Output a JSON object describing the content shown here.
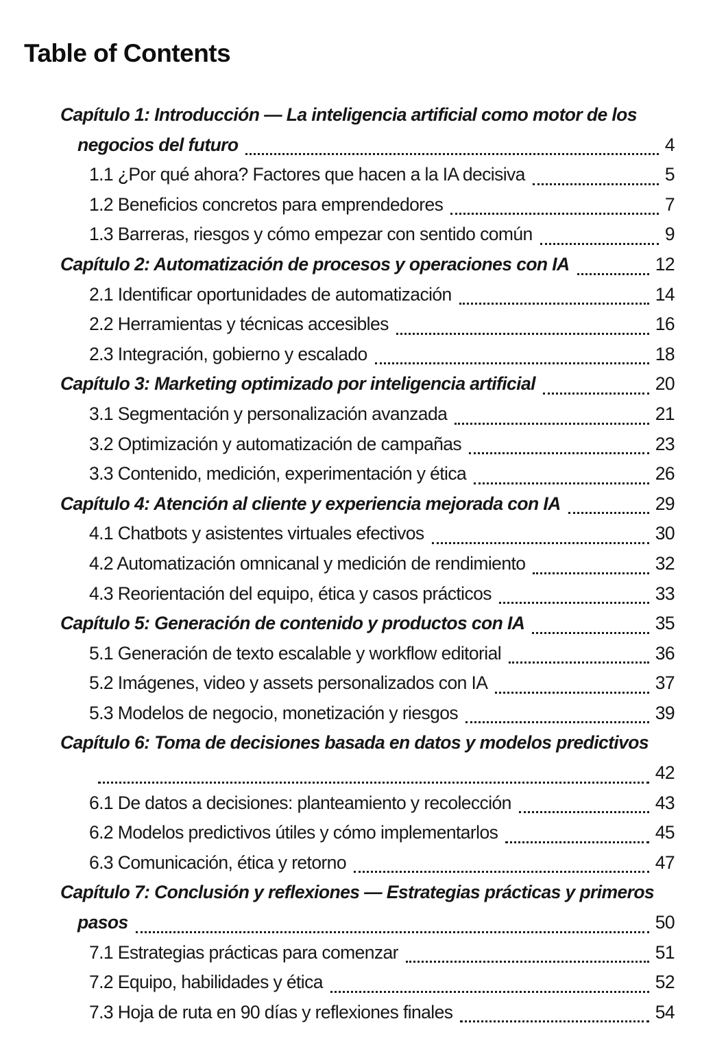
{
  "colors": {
    "background": "#ffffff",
    "text": "#161616"
  },
  "toc": {
    "title": "Table of Contents",
    "entries": [
      {
        "type": "chapter",
        "pre_lines": [
          "Capítulo 1: Introducción — La inteligencia artificial como motor de los"
        ],
        "text": "negocios del futuro",
        "page": "4"
      },
      {
        "type": "sub",
        "text": "1.1 ¿Por qué ahora? Factores que hacen a la IA decisiva",
        "page": "5"
      },
      {
        "type": "sub",
        "text": "1.2 Beneficios concretos para emprendedores",
        "page": "7"
      },
      {
        "type": "sub",
        "text": "1.3 Barreras, riesgos y cómo empezar con sentido común",
        "page": "9"
      },
      {
        "type": "chapter",
        "text": "Capítulo 2: Automatización de procesos y operaciones con IA",
        "page": "12"
      },
      {
        "type": "sub",
        "text": "2.1 Identificar oportunidades de automatización",
        "page": "14"
      },
      {
        "type": "sub",
        "text": "2.2 Herramientas y técnicas accesibles",
        "page": "16"
      },
      {
        "type": "sub",
        "text": "2.3 Integración, gobierno y escalado",
        "page": "18"
      },
      {
        "type": "chapter",
        "text": "Capítulo 3: Marketing optimizado por inteligencia artificial",
        "page": "20"
      },
      {
        "type": "sub",
        "text": "3.1 Segmentación y personalización avanzada",
        "page": "21"
      },
      {
        "type": "sub",
        "text": "3.2 Optimización y automatización de campañas",
        "page": "23"
      },
      {
        "type": "sub",
        "text": "3.3 Contenido, medición, experimentación y ética",
        "page": "26"
      },
      {
        "type": "chapter",
        "text": "Capítulo 4: Atención al cliente y experiencia mejorada con IA",
        "page": "29"
      },
      {
        "type": "sub",
        "text": "4.1 Chatbots y asistentes virtuales efectivos",
        "page": "30"
      },
      {
        "type": "sub",
        "text": "4.2 Automatización omnicanal y medición de rendimiento",
        "page": "32"
      },
      {
        "type": "sub",
        "text": "4.3 Reorientación del equipo, ética y casos prácticos",
        "page": "33"
      },
      {
        "type": "chapter",
        "text": "Capítulo 5: Generación de contenido y productos con IA",
        "page": "35"
      },
      {
        "type": "sub",
        "text": "5.1 Generación de texto escalable y workflow editorial",
        "page": "36"
      },
      {
        "type": "sub",
        "text": "5.2 Imágenes, video y assets personalizados con IA",
        "page": "37"
      },
      {
        "type": "sub",
        "text": "5.3 Modelos de negocio, monetización y riesgos",
        "page": "39"
      },
      {
        "type": "chapter",
        "pre_lines": [
          "Capítulo 6: Toma de decisiones basada en datos y modelos predictivos"
        ],
        "text": "",
        "page": "42"
      },
      {
        "type": "sub",
        "text": "6.1 De datos a decisiones: planteamiento y recolección",
        "page": "43"
      },
      {
        "type": "sub",
        "text": "6.2 Modelos predictivos útiles y cómo implementarlos",
        "page": "45"
      },
      {
        "type": "sub",
        "text": "6.3 Comunicación, ética y retorno",
        "page": "47"
      },
      {
        "type": "chapter",
        "pre_lines": [
          "Capítulo 7: Conclusión y reflexiones — Estrategias prácticas y primeros"
        ],
        "text": "pasos",
        "page": "50"
      },
      {
        "type": "sub",
        "text": "7.1 Estrategias prácticas para comenzar",
        "page": "51"
      },
      {
        "type": "sub",
        "text": "7.2 Equipo, habilidades y ética",
        "page": "52"
      },
      {
        "type": "sub",
        "text": "7.3 Hoja de ruta en 90 días y reflexiones finales",
        "page": "54"
      }
    ]
  }
}
